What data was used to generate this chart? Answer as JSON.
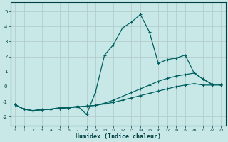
{
  "xlabel": "Humidex (Indice chaleur)",
  "background_color": "#c8e8e8",
  "grid_color": "#b0c8c8",
  "line_color": "#006060",
  "spine_color": "#004040",
  "xlim": [
    -0.5,
    23.5
  ],
  "ylim": [
    -2.6,
    5.6
  ],
  "yticks": [
    -2,
    -1,
    0,
    1,
    2,
    3,
    4,
    5
  ],
  "xticks": [
    0,
    1,
    2,
    3,
    4,
    5,
    6,
    7,
    8,
    9,
    10,
    11,
    12,
    13,
    14,
    15,
    16,
    17,
    18,
    19,
    20,
    21,
    22,
    23
  ],
  "series": [
    {
      "x": [
        0,
        1,
        2,
        3,
        4,
        5,
        6,
        7,
        8,
        9,
        10,
        11,
        12,
        13,
        14,
        15,
        16,
        17,
        18,
        19,
        20,
        21,
        22,
        23
      ],
      "y": [
        -1.2,
        -1.5,
        -1.6,
        -1.5,
        -1.5,
        -1.4,
        -1.4,
        -1.3,
        -1.85,
        -0.35,
        2.1,
        2.8,
        3.9,
        4.3,
        4.8,
        3.65,
        1.55,
        1.8,
        1.9,
        2.1,
        0.9,
        0.5,
        0.15,
        0.15
      ]
    },
    {
      "x": [
        0,
        1,
        2,
        3,
        4,
        5,
        6,
        7,
        8,
        9,
        10,
        11,
        12,
        13,
        14,
        15,
        16,
        17,
        18,
        19,
        20,
        21,
        22,
        23
      ],
      "y": [
        -1.2,
        -1.5,
        -1.6,
        -1.55,
        -1.5,
        -1.45,
        -1.4,
        -1.35,
        -1.3,
        -1.25,
        -1.1,
        -0.9,
        -0.65,
        -0.4,
        -0.15,
        0.1,
        0.35,
        0.55,
        0.7,
        0.8,
        0.9,
        0.5,
        0.15,
        0.15
      ]
    },
    {
      "x": [
        0,
        1,
        2,
        3,
        4,
        5,
        6,
        7,
        8,
        9,
        10,
        11,
        12,
        13,
        14,
        15,
        16,
        17,
        18,
        19,
        20,
        21,
        22,
        23
      ],
      "y": [
        -1.2,
        -1.5,
        -1.6,
        -1.55,
        -1.5,
        -1.45,
        -1.4,
        -1.35,
        -1.3,
        -1.25,
        -1.15,
        -1.05,
        -0.9,
        -0.75,
        -0.6,
        -0.45,
        -0.3,
        -0.15,
        0.0,
        0.1,
        0.2,
        0.1,
        0.1,
        0.1
      ]
    }
  ]
}
